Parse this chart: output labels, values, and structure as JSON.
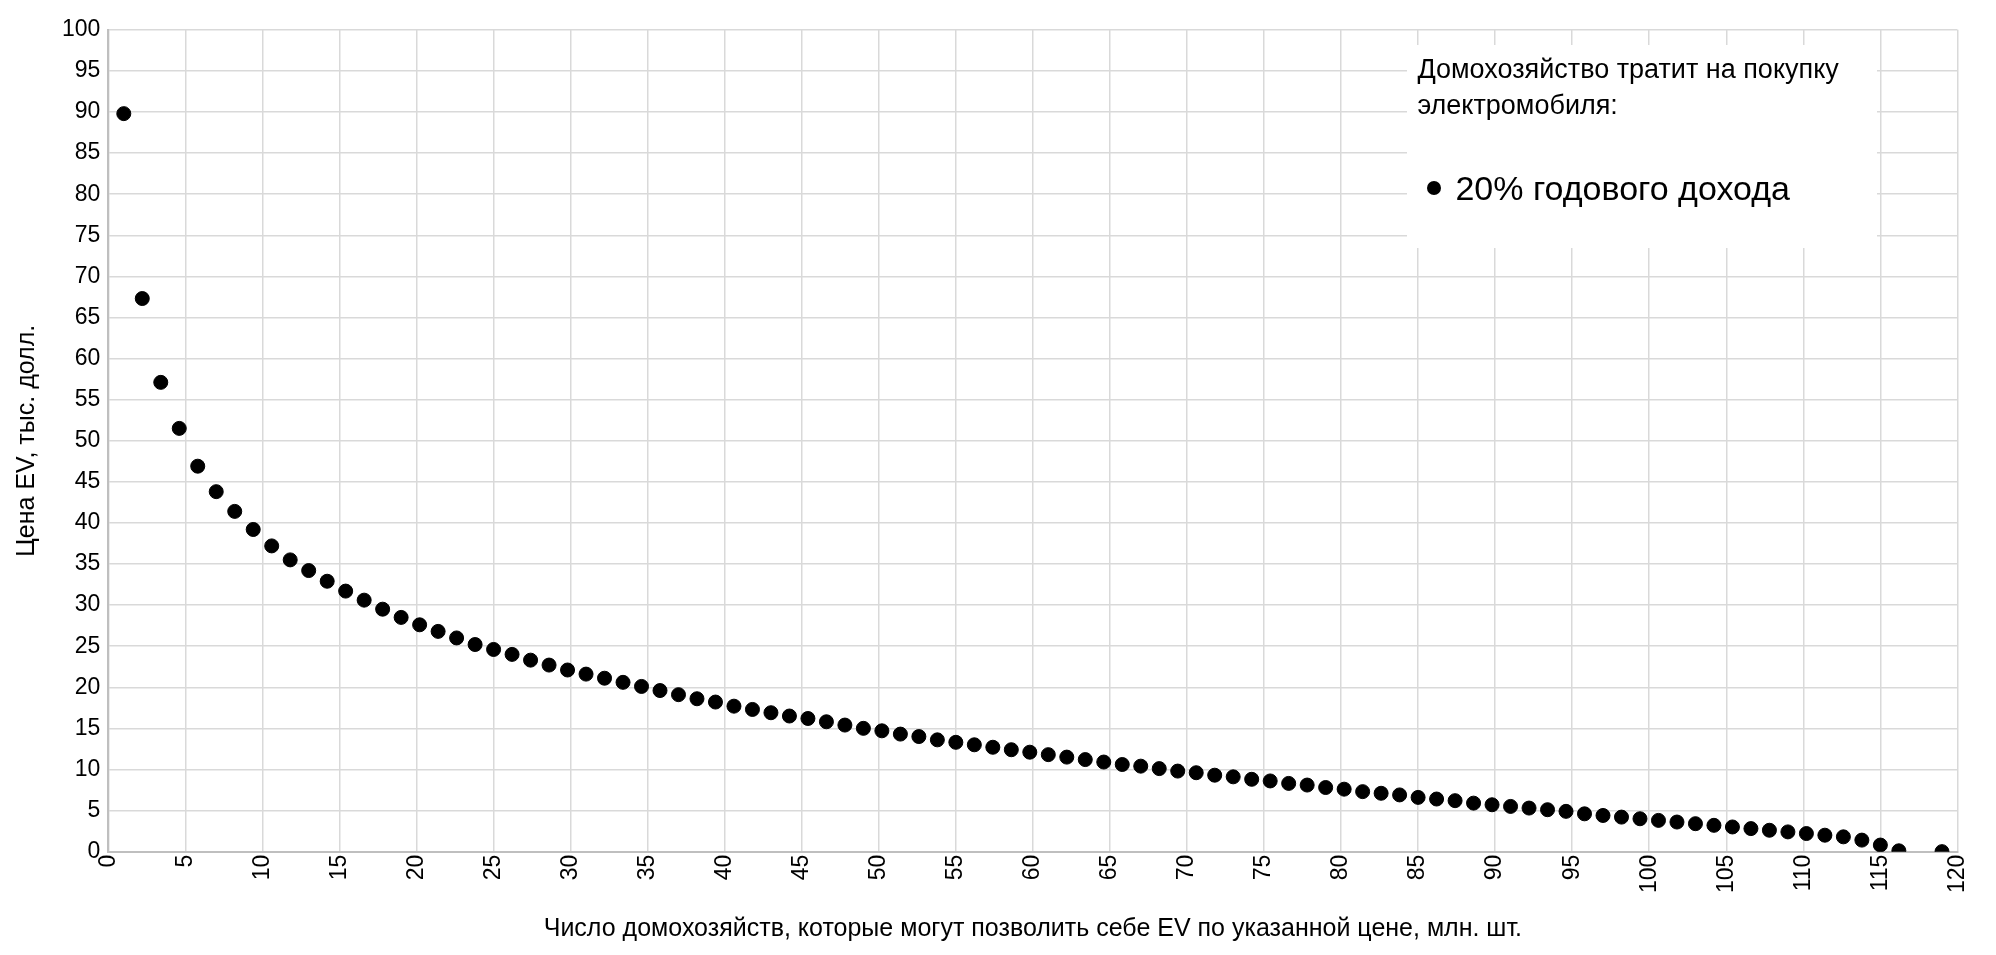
{
  "chart_data": {
    "type": "scatter",
    "xlabel": "Число домохозяйств, которые могут позволить себе EV по указанной цене, млн. шт.",
    "ylabel": "Цена EV, тыс. долл.",
    "legend_title": "Домохозяйство тратит на покупку электромобиля:",
    "legend": "top right",
    "grid": true,
    "marker": "circle",
    "xlim": [
      0,
      120
    ],
    "xticks": [
      0,
      5,
      10,
      15,
      20,
      25,
      30,
      35,
      40,
      45,
      50,
      55,
      60,
      65,
      70,
      75,
      80,
      85,
      90,
      95,
      100,
      105,
      110,
      115,
      120
    ],
    "ylim": [
      0,
      100
    ],
    "yticks": [
      0,
      5,
      10,
      15,
      20,
      25,
      30,
      35,
      40,
      45,
      50,
      55,
      60,
      65,
      70,
      75,
      80,
      85,
      90,
      95,
      100
    ],
    "series": [
      {
        "name": "20% годового дохода",
        "color": "#000000",
        "x": [
          1.0,
          2.2,
          3.4,
          4.6,
          5.8,
          7.0,
          8.2,
          9.4,
          10.6,
          11.8,
          13.0,
          14.2,
          15.4,
          16.6,
          17.8,
          19.0,
          20.2,
          21.4,
          22.6,
          23.8,
          25.0,
          26.2,
          27.4,
          28.6,
          29.8,
          31.0,
          32.2,
          33.4,
          34.6,
          35.8,
          37.0,
          38.2,
          39.4,
          40.6,
          41.8,
          43.0,
          44.2,
          45.4,
          46.6,
          47.8,
          49.0,
          50.2,
          51.4,
          52.6,
          53.8,
          55.0,
          56.2,
          57.4,
          58.6,
          59.8,
          61.0,
          62.2,
          63.4,
          64.6,
          65.8,
          67.0,
          68.2,
          69.4,
          70.6,
          71.8,
          73.0,
          74.2,
          75.4,
          76.6,
          77.8,
          79.0,
          80.2,
          81.4,
          82.6,
          83.8,
          85.0,
          86.2,
          87.4,
          88.6,
          89.8,
          91.0,
          92.2,
          93.4,
          94.6,
          95.8,
          97.0,
          98.2,
          99.4,
          100.6,
          101.8,
          103.0,
          104.2,
          105.4,
          106.6,
          107.8,
          109.0,
          110.2,
          111.4,
          112.6,
          113.8,
          115.0,
          116.2,
          119.0
        ],
        "values": [
          89.8,
          67.3,
          57.1,
          51.5,
          46.9,
          43.8,
          41.4,
          39.2,
          37.2,
          35.5,
          34.2,
          32.9,
          31.7,
          30.6,
          29.5,
          28.5,
          27.6,
          26.8,
          26.0,
          25.2,
          24.6,
          24.0,
          23.3,
          22.7,
          22.1,
          21.6,
          21.1,
          20.6,
          20.1,
          19.6,
          19.1,
          18.6,
          18.2,
          17.7,
          17.3,
          16.9,
          16.5,
          16.2,
          15.8,
          15.4,
          15.0,
          14.7,
          14.3,
          14.0,
          13.6,
          13.3,
          13.0,
          12.7,
          12.4,
          12.1,
          11.8,
          11.5,
          11.2,
          10.9,
          10.6,
          10.4,
          10.1,
          9.8,
          9.6,
          9.3,
          9.1,
          8.8,
          8.6,
          8.3,
          8.1,
          7.8,
          7.6,
          7.3,
          7.1,
          6.9,
          6.6,
          6.4,
          6.2,
          5.9,
          5.7,
          5.5,
          5.3,
          5.1,
          4.9,
          4.6,
          4.4,
          4.2,
          4.0,
          3.8,
          3.6,
          3.4,
          3.2,
          3.0,
          2.8,
          2.6,
          2.4,
          2.2,
          2.0,
          1.8,
          1.4,
          0.8,
          0.1,
          0
        ]
      }
    ]
  }
}
